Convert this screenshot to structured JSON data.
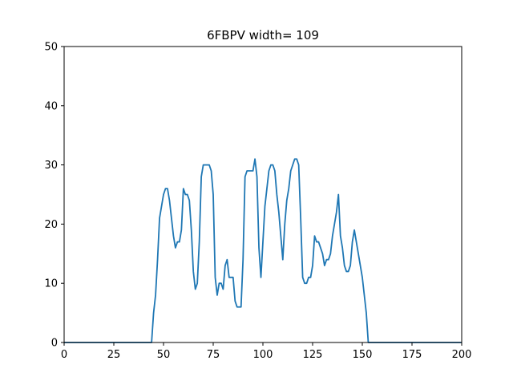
{
  "chart_data": {
    "type": "line",
    "title": "6FBPV width= 109",
    "xlabel": "",
    "ylabel": "",
    "xlim": [
      0,
      200
    ],
    "ylim": [
      0,
      50
    ],
    "xticks": [
      0,
      25,
      50,
      75,
      100,
      125,
      150,
      175,
      200
    ],
    "yticks": [
      0,
      10,
      20,
      30,
      40,
      50
    ],
    "grid": false,
    "line_color": "#1f77b4",
    "series": [
      {
        "x": [
          0,
          44,
          45,
          46,
          47,
          48,
          49,
          50,
          51,
          52,
          53,
          54,
          55,
          56,
          57,
          58,
          59,
          60,
          61,
          62,
          63,
          64,
          65,
          66,
          67,
          68,
          69,
          70,
          71,
          72,
          73,
          74,
          75,
          76,
          77,
          78,
          79,
          80,
          81,
          82,
          83,
          84,
          85,
          86,
          87,
          88,
          89,
          90,
          91,
          92,
          93,
          94,
          95,
          96,
          97,
          98,
          99,
          100,
          101,
          102,
          103,
          104,
          105,
          106,
          107,
          108,
          109,
          110,
          111,
          112,
          113,
          114,
          115,
          116,
          117,
          118,
          119,
          120,
          121,
          122,
          123,
          124,
          125,
          126,
          127,
          128,
          129,
          130,
          131,
          132,
          133,
          134,
          135,
          136,
          137,
          138,
          139,
          140,
          141,
          142,
          143,
          144,
          145,
          146,
          147,
          148,
          149,
          150,
          151,
          152,
          153,
          154,
          200
        ],
        "values": [
          0,
          0,
          5,
          8,
          14,
          21,
          23,
          25,
          26,
          26,
          24,
          21,
          18,
          16,
          17,
          17,
          19,
          26,
          25,
          25,
          24,
          19,
          12,
          9,
          10,
          17,
          28,
          30,
          30,
          30,
          30,
          29,
          25,
          11,
          8,
          10,
          10,
          9,
          13,
          14,
          11,
          11,
          11,
          7,
          6,
          6,
          6,
          14,
          28,
          29,
          29,
          29,
          29,
          31,
          28,
          16,
          11,
          17,
          23,
          26,
          29,
          30,
          30,
          29,
          25,
          22,
          18,
          14,
          20,
          24,
          26,
          29,
          30,
          31,
          31,
          30,
          21,
          11,
          10,
          10,
          11,
          11,
          13,
          18,
          17,
          17,
          16,
          15,
          13,
          14,
          14,
          15,
          18,
          20,
          22,
          25,
          18,
          16,
          13,
          12,
          12,
          13,
          17,
          19,
          17,
          15,
          13,
          11,
          8,
          5,
          0,
          0,
          0
        ]
      }
    ]
  }
}
